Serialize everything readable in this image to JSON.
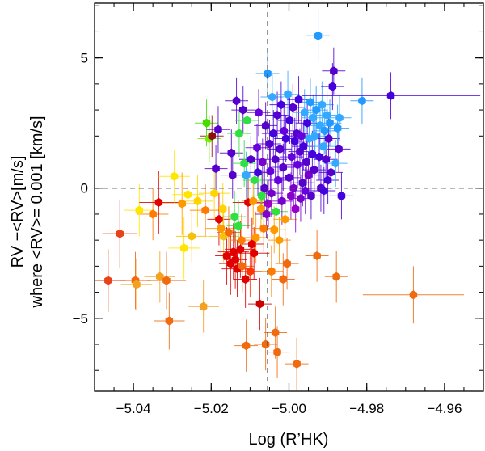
{
  "chart_data": {
    "type": "scatter",
    "xlabel": "Log (R’HK)",
    "ylabel_line1": "RV −<RV>[m/s]",
    "ylabel_line2": "where <RV>=  0.001 [km/s]",
    "xlim": [
      -5.05,
      -4.95
    ],
    "ylim": [
      -7.8,
      7.1
    ],
    "x_ticks": [
      -5.04,
      -5.02,
      -5.0,
      -4.98,
      -4.96
    ],
    "x_tick_labels": [
      "−5.04",
      "−5.02",
      "−5.00",
      "−4.98",
      "−4.96"
    ],
    "y_ticks": [
      -5,
      0,
      5
    ],
    "y_tick_labels": [
      "−5",
      "0",
      "5"
    ],
    "reference_lines": {
      "y": 0,
      "x": -5.0055
    },
    "color_scale": "rainbow from red to violet (phase/time ordering)",
    "points": [
      {
        "x": -5.0465,
        "y": -3.55,
        "xerr": 0.0045,
        "yerr": 1.2,
        "c": "#e8421a"
      },
      {
        "x": -5.0435,
        "y": -1.75,
        "xerr": 0.0045,
        "yerr": 1.3,
        "c": "#e8421a"
      },
      {
        "x": -5.0395,
        "y": -3.55,
        "xerr": 0.004,
        "yerr": 1.1,
        "c": "#f06a10"
      },
      {
        "x": -5.0392,
        "y": -3.7,
        "xerr": 0.004,
        "yerr": 1.0,
        "c": "#f4a020"
      },
      {
        "x": -5.0385,
        "y": -0.85,
        "xerr": 0.004,
        "yerr": 1.0,
        "c": "#ffe600"
      },
      {
        "x": -5.035,
        "y": -1.0,
        "xerr": 0.004,
        "yerr": 1.0,
        "c": "#ff7a00"
      },
      {
        "x": -5.0335,
        "y": -0.55,
        "xerr": 0.005,
        "yerr": 1.2,
        "c": "#e00000"
      },
      {
        "x": -5.0332,
        "y": -3.4,
        "xerr": 0.004,
        "yerr": 1.0,
        "c": "#f4a020"
      },
      {
        "x": -5.0315,
        "y": -3.55,
        "xerr": 0.005,
        "yerr": 1.1,
        "c": "#f06a10"
      },
      {
        "x": -5.0308,
        "y": -5.1,
        "xerr": 0.004,
        "yerr": 1.1,
        "c": "#f06a10"
      },
      {
        "x": -5.0295,
        "y": 0.45,
        "xerr": 0.004,
        "yerr": 1.0,
        "c": "#ffe600"
      },
      {
        "x": -5.0275,
        "y": -0.6,
        "xerr": 0.005,
        "yerr": 1.2,
        "c": "#ff9900"
      },
      {
        "x": -5.027,
        "y": -2.3,
        "xerr": 0.004,
        "yerr": 1.2,
        "c": "#ffe600"
      },
      {
        "x": -5.026,
        "y": -0.25,
        "xerr": 0.004,
        "yerr": 1.0,
        "c": "#ffe600"
      },
      {
        "x": -5.025,
        "y": -1.85,
        "xerr": 0.004,
        "yerr": 1.0,
        "c": "#f4c20d"
      },
      {
        "x": -5.0235,
        "y": -0.5,
        "xerr": 0.004,
        "yerr": 1.0,
        "c": "#ffd400"
      },
      {
        "x": -5.022,
        "y": -4.55,
        "xerr": 0.004,
        "yerr": 1.0,
        "c": "#f4a020"
      },
      {
        "x": -5.0215,
        "y": -0.85,
        "xerr": 0.004,
        "yerr": 1.0,
        "c": "#ff7a00"
      },
      {
        "x": -5.0212,
        "y": 2.5,
        "xerr": 0.003,
        "yerr": 0.9,
        "c": "#44dd00"
      },
      {
        "x": -5.0205,
        "y": 1.9,
        "xerr": 0.003,
        "yerr": 0.9,
        "c": "#77ee00"
      },
      {
        "x": -5.0198,
        "y": 2.0,
        "xerr": 0.003,
        "yerr": 0.8,
        "c": "#8b1010"
      },
      {
        "x": -5.0192,
        "y": -0.2,
        "xerr": 0.004,
        "yerr": 1.0,
        "c": "#ffd400"
      },
      {
        "x": -5.0188,
        "y": 0.75,
        "xerr": 0.003,
        "yerr": 0.9,
        "c": "#5500cc"
      },
      {
        "x": -5.0182,
        "y": 2.25,
        "xerr": 0.003,
        "yerr": 0.9,
        "c": "#5500cc"
      },
      {
        "x": -5.018,
        "y": -1.2,
        "xerr": 0.003,
        "yerr": 1.0,
        "c": "#e00000"
      },
      {
        "x": -5.0175,
        "y": -1.55,
        "xerr": 0.004,
        "yerr": 1.0,
        "c": "#ff9900"
      },
      {
        "x": -5.017,
        "y": -0.8,
        "xerr": 0.003,
        "yerr": 1.0,
        "c": "#ffd400"
      },
      {
        "x": -5.0168,
        "y": -1.85,
        "xerr": 0.004,
        "yerr": 1.0,
        "c": "#f4c20d"
      },
      {
        "x": -5.016,
        "y": -2.6,
        "xerr": 0.003,
        "yerr": 1.1,
        "c": "#e00000"
      },
      {
        "x": -5.0155,
        "y": -1.7,
        "xerr": 0.003,
        "yerr": 1.0,
        "c": "#f06a10"
      },
      {
        "x": -5.015,
        "y": -2.9,
        "xerr": 0.003,
        "yerr": 1.2,
        "c": "#e00000"
      },
      {
        "x": -5.0148,
        "y": 1.35,
        "xerr": 0.003,
        "yerr": 0.9,
        "c": "#5500cc"
      },
      {
        "x": -5.0145,
        "y": 0.5,
        "xerr": 0.003,
        "yerr": 0.9,
        "c": "#5500cc"
      },
      {
        "x": -5.0143,
        "y": -2.45,
        "xerr": 0.004,
        "yerr": 1.1,
        "c": "#e00000"
      },
      {
        "x": -5.014,
        "y": -1.1,
        "xerr": 0.003,
        "yerr": 1.0,
        "c": "#30e040"
      },
      {
        "x": -5.0138,
        "y": -2.75,
        "xerr": 0.003,
        "yerr": 1.1,
        "c": "#e00000"
      },
      {
        "x": -5.0135,
        "y": 3.35,
        "xerr": 0.003,
        "yerr": 0.9,
        "c": "#5500cc"
      },
      {
        "x": -5.0133,
        "y": -3.1,
        "xerr": 0.004,
        "yerr": 1.1,
        "c": "#e00000"
      },
      {
        "x": -5.013,
        "y": -1.45,
        "xerr": 0.003,
        "yerr": 1.0,
        "c": "#30e040"
      },
      {
        "x": -5.0128,
        "y": 2.1,
        "xerr": 0.003,
        "yerr": 0.9,
        "c": "#30e040"
      },
      {
        "x": -5.0125,
        "y": -2.35,
        "xerr": 0.004,
        "yerr": 1.1,
        "c": "#e00000"
      },
      {
        "x": -5.0122,
        "y": -2.0,
        "xerr": 0.003,
        "yerr": 1.0,
        "c": "#ff7a00"
      },
      {
        "x": -5.012,
        "y": -3.0,
        "xerr": 0.003,
        "yerr": 1.0,
        "c": "#f06a10"
      },
      {
        "x": -5.0118,
        "y": 3.0,
        "xerr": 0.003,
        "yerr": 0.9,
        "c": "#5500cc"
      },
      {
        "x": -5.0115,
        "y": 0.95,
        "xerr": 0.003,
        "yerr": 0.9,
        "c": "#30e040"
      },
      {
        "x": -5.0112,
        "y": -3.5,
        "xerr": 0.003,
        "yerr": 1.1,
        "c": "#e00000"
      },
      {
        "x": -5.011,
        "y": 0.5,
        "xerr": 0.003,
        "yerr": 0.9,
        "c": "#33aaff"
      },
      {
        "x": -5.0108,
        "y": 2.6,
        "xerr": 0.003,
        "yerr": 0.9,
        "c": "#30e040"
      },
      {
        "x": -5.0105,
        "y": -0.55,
        "xerr": 0.004,
        "yerr": 1.0,
        "c": "#e00000"
      },
      {
        "x": -5.01,
        "y": -3.2,
        "xerr": 0.003,
        "yerr": 1.0,
        "c": "#ff3300"
      },
      {
        "x": -5.0098,
        "y": 1.1,
        "xerr": 0.003,
        "yerr": 0.9,
        "c": "#5500cc"
      },
      {
        "x": -5.0095,
        "y": -2.15,
        "xerr": 0.003,
        "yerr": 1.0,
        "c": "#e00000"
      },
      {
        "x": -5.0092,
        "y": -0.5,
        "xerr": 0.003,
        "yerr": 0.9,
        "c": "#ff9900"
      },
      {
        "x": -5.009,
        "y": -2.5,
        "xerr": 0.004,
        "yerr": 1.0,
        "c": "#e00000"
      },
      {
        "x": -5.0088,
        "y": 0.3,
        "xerr": 0.003,
        "yerr": 0.9,
        "c": "#30e040"
      },
      {
        "x": -5.0085,
        "y": -1.9,
        "xerr": 0.003,
        "yerr": 1.0,
        "c": "#ff9900"
      },
      {
        "x": -5.0082,
        "y": 1.55,
        "xerr": 0.003,
        "yerr": 0.9,
        "c": "#6600dd"
      },
      {
        "x": -5.008,
        "y": 0.6,
        "xerr": 0.003,
        "yerr": 0.9,
        "c": "#4400dd"
      },
      {
        "x": -5.0078,
        "y": 2.9,
        "xerr": 0.003,
        "yerr": 0.9,
        "c": "#6600dd"
      },
      {
        "x": -5.0075,
        "y": -4.45,
        "xerr": 0.003,
        "yerr": 1.0,
        "c": "#cc0000"
      },
      {
        "x": -5.0072,
        "y": -0.8,
        "xerr": 0.003,
        "yerr": 0.9,
        "c": "#ff9900"
      },
      {
        "x": -5.007,
        "y": -0.3,
        "xerr": 0.003,
        "yerr": 0.9,
        "c": "#30e040"
      },
      {
        "x": -5.0068,
        "y": 1.0,
        "xerr": 0.003,
        "yerr": 0.9,
        "c": "#7700cc"
      },
      {
        "x": -5.0065,
        "y": -1.55,
        "xerr": 0.003,
        "yerr": 0.9,
        "c": "#ff7a00"
      },
      {
        "x": -5.0063,
        "y": 0.0,
        "xerr": 0.003,
        "yerr": 0.9,
        "c": "#5500cc"
      },
      {
        "x": -5.006,
        "y": 2.4,
        "xerr": 0.003,
        "yerr": 0.9,
        "c": "#5500cc"
      },
      {
        "x": -5.0058,
        "y": -1.0,
        "xerr": 0.003,
        "yerr": 0.9,
        "c": "#8800cc"
      },
      {
        "x": -5.0055,
        "y": 4.4,
        "xerr": 0.003,
        "yerr": 0.9,
        "c": "#2299ff"
      },
      {
        "x": -5.0053,
        "y": -0.6,
        "xerr": 0.003,
        "yerr": 0.9,
        "c": "#9900cc"
      },
      {
        "x": -5.005,
        "y": 1.7,
        "xerr": 0.003,
        "yerr": 0.9,
        "c": "#5500cc"
      },
      {
        "x": -5.0048,
        "y": 0.65,
        "xerr": 0.003,
        "yerr": 0.9,
        "c": "#6600dd"
      },
      {
        "x": -5.0045,
        "y": -0.2,
        "xerr": 0.003,
        "yerr": 0.9,
        "c": "#7700cc"
      },
      {
        "x": -5.0043,
        "y": 3.5,
        "xerr": 0.003,
        "yerr": 0.9,
        "c": "#33aaff"
      },
      {
        "x": -5.004,
        "y": 2.1,
        "xerr": 0.003,
        "yerr": 0.9,
        "c": "#4400dd"
      },
      {
        "x": -5.0038,
        "y": -1.6,
        "xerr": 0.003,
        "yerr": 0.9,
        "c": "#ff9900"
      },
      {
        "x": -5.0035,
        "y": 1.1,
        "xerr": 0.003,
        "yerr": 0.9,
        "c": "#5500cc"
      },
      {
        "x": -5.0033,
        "y": -0.9,
        "xerr": 0.003,
        "yerr": 0.9,
        "c": "#30e040"
      },
      {
        "x": -5.003,
        "y": 2.8,
        "xerr": 0.003,
        "yerr": 0.9,
        "c": "#5500cc"
      },
      {
        "x": -5.0028,
        "y": 0.3,
        "xerr": 0.003,
        "yerr": 0.9,
        "c": "#6600dd"
      },
      {
        "x": -5.0025,
        "y": -2.0,
        "xerr": 0.003,
        "yerr": 0.9,
        "c": "#ff9900"
      },
      {
        "x": -5.0023,
        "y": 1.5,
        "xerr": 0.003,
        "yerr": 0.9,
        "c": "#5500cc"
      },
      {
        "x": -5.002,
        "y": 3.2,
        "xerr": 0.003,
        "yerr": 0.9,
        "c": "#4400dd"
      },
      {
        "x": -5.0018,
        "y": -0.5,
        "xerr": 0.003,
        "yerr": 0.9,
        "c": "#7700cc"
      },
      {
        "x": -5.0015,
        "y": 0.8,
        "xerr": 0.003,
        "yerr": 0.9,
        "c": "#5500cc"
      },
      {
        "x": -5.0013,
        "y": 2.2,
        "xerr": 0.003,
        "yerr": 0.9,
        "c": "#6600dd"
      },
      {
        "x": -5.001,
        "y": -1.2,
        "xerr": 0.003,
        "yerr": 0.9,
        "c": "#ff9900"
      },
      {
        "x": -5.0008,
        "y": 1.9,
        "xerr": 0.003,
        "yerr": 0.9,
        "c": "#4400dd"
      },
      {
        "x": -5.0005,
        "y": -2.9,
        "xerr": 0.003,
        "yerr": 1.0,
        "c": "#f06a10"
      },
      {
        "x": -5.0003,
        "y": 3.6,
        "xerr": 0.003,
        "yerr": 0.9,
        "c": "#33aaff"
      },
      {
        "x": -5.0,
        "y": 0.4,
        "xerr": 0.003,
        "yerr": 0.9,
        "c": "#5500cc"
      },
      {
        "x": -4.9998,
        "y": 2.6,
        "xerr": 0.003,
        "yerr": 0.9,
        "c": "#4400dd"
      },
      {
        "x": -4.9995,
        "y": -0.3,
        "xerr": 0.003,
        "yerr": 0.9,
        "c": "#8800cc"
      },
      {
        "x": -4.9993,
        "y": 1.2,
        "xerr": 0.003,
        "yerr": 0.9,
        "c": "#6600dd"
      },
      {
        "x": -4.999,
        "y": 3.1,
        "xerr": 0.003,
        "yerr": 0.9,
        "c": "#5500cc"
      },
      {
        "x": -4.9988,
        "y": 0.0,
        "xerr": 0.003,
        "yerr": 0.9,
        "c": "#7700cc"
      },
      {
        "x": -4.9985,
        "y": 1.8,
        "xerr": 0.003,
        "yerr": 0.9,
        "c": "#4400dd"
      },
      {
        "x": -4.9983,
        "y": -0.8,
        "xerr": 0.003,
        "yerr": 0.9,
        "c": "#9900cc"
      },
      {
        "x": -4.998,
        "y": 2.1,
        "xerr": 0.003,
        "yerr": 0.9,
        "c": "#5500cc"
      },
      {
        "x": -4.9978,
        "y": 0.9,
        "xerr": 0.003,
        "yerr": 0.9,
        "c": "#6600dd"
      },
      {
        "x": -4.9975,
        "y": 3.4,
        "xerr": 0.003,
        "yerr": 0.9,
        "c": "#4400dd"
      },
      {
        "x": -4.9972,
        "y": 1.4,
        "xerr": 0.003,
        "yerr": 0.9,
        "c": "#5500cc"
      },
      {
        "x": -4.997,
        "y": -0.4,
        "xerr": 0.003,
        "yerr": 0.9,
        "c": "#7700cc"
      },
      {
        "x": -4.9968,
        "y": 2.0,
        "xerr": 0.003,
        "yerr": 0.9,
        "c": "#6600dd"
      },
      {
        "x": -4.9965,
        "y": 0.2,
        "xerr": 0.003,
        "yerr": 0.9,
        "c": "#5500cc"
      },
      {
        "x": -4.9963,
        "y": 1.6,
        "xerr": 0.003,
        "yerr": 0.9,
        "c": "#4400dd"
      },
      {
        "x": -4.996,
        "y": 2.9,
        "xerr": 0.003,
        "yerr": 0.9,
        "c": "#33aaff"
      },
      {
        "x": -4.9958,
        "y": -0.1,
        "xerr": 0.003,
        "yerr": 0.9,
        "c": "#6600dd"
      },
      {
        "x": -4.9955,
        "y": 1.0,
        "xerr": 0.003,
        "yerr": 0.9,
        "c": "#5500cc"
      },
      {
        "x": -4.9953,
        "y": 2.5,
        "xerr": 0.003,
        "yerr": 0.9,
        "c": "#4400dd"
      },
      {
        "x": -4.995,
        "y": 0.5,
        "xerr": 0.003,
        "yerr": 0.9,
        "c": "#7700cc"
      },
      {
        "x": -4.9948,
        "y": 1.9,
        "xerr": 0.003,
        "yerr": 0.9,
        "c": "#33aaff"
      },
      {
        "x": -4.9945,
        "y": 3.3,
        "xerr": 0.003,
        "yerr": 0.9,
        "c": "#2299ff"
      },
      {
        "x": -4.9943,
        "y": -0.3,
        "xerr": 0.003,
        "yerr": 0.9,
        "c": "#5500cc"
      },
      {
        "x": -4.994,
        "y": 1.3,
        "xerr": 0.003,
        "yerr": 0.9,
        "c": "#4400dd"
      },
      {
        "x": -4.9938,
        "y": 2.7,
        "xerr": 0.003,
        "yerr": 0.9,
        "c": "#33aaff"
      },
      {
        "x": -4.9935,
        "y": 0.7,
        "xerr": 0.003,
        "yerr": 0.9,
        "c": "#5500cc"
      },
      {
        "x": -4.9933,
        "y": 2.0,
        "xerr": 0.003,
        "yerr": 0.9,
        "c": "#33aaff"
      },
      {
        "x": -4.993,
        "y": 3.0,
        "xerr": 0.003,
        "yerr": 0.9,
        "c": "#2299ff"
      },
      {
        "x": -4.9928,
        "y": -2.6,
        "xerr": 0.003,
        "yerr": 1.0,
        "c": "#f06a10"
      },
      {
        "x": -4.9925,
        "y": 5.85,
        "xerr": 0.003,
        "yerr": 1.0,
        "c": "#2299ff"
      },
      {
        "x": -4.9922,
        "y": 1.2,
        "xerr": 0.003,
        "yerr": 0.9,
        "c": "#4400dd"
      },
      {
        "x": -4.992,
        "y": 2.4,
        "xerr": 0.003,
        "yerr": 0.9,
        "c": "#33aaff"
      },
      {
        "x": -4.9918,
        "y": 0.0,
        "xerr": 0.003,
        "yerr": 0.9,
        "c": "#5500cc"
      },
      {
        "x": -4.9915,
        "y": 3.2,
        "xerr": 0.003,
        "yerr": 0.9,
        "c": "#33aaff"
      },
      {
        "x": -4.9912,
        "y": 1.6,
        "xerr": 0.003,
        "yerr": 0.9,
        "c": "#33aaff"
      },
      {
        "x": -4.991,
        "y": -0.1,
        "xerr": 0.003,
        "yerr": 0.9,
        "c": "#4400dd"
      },
      {
        "x": -4.9908,
        "y": 2.2,
        "xerr": 0.003,
        "yerr": 0.9,
        "c": "#2299ff"
      },
      {
        "x": -4.9905,
        "y": 1.1,
        "xerr": 0.003,
        "yerr": 0.9,
        "c": "#5500cc"
      },
      {
        "x": -4.9902,
        "y": 2.8,
        "xerr": 0.003,
        "yerr": 0.9,
        "c": "#33aaff"
      },
      {
        "x": -4.99,
        "y": 0.3,
        "xerr": 0.003,
        "yerr": 0.9,
        "c": "#4400dd"
      },
      {
        "x": -4.9898,
        "y": 1.9,
        "xerr": 0.003,
        "yerr": 0.9,
        "c": "#5500cc"
      },
      {
        "x": -4.9895,
        "y": 2.5,
        "xerr": 0.003,
        "yerr": 0.9,
        "c": "#2299ff"
      },
      {
        "x": -4.9892,
        "y": 0.6,
        "xerr": 0.003,
        "yerr": 0.9,
        "c": "#5500cc"
      },
      {
        "x": -4.9888,
        "y": 3.9,
        "xerr": 0.003,
        "yerr": 0.9,
        "c": "#4400dd"
      },
      {
        "x": -4.9885,
        "y": 4.5,
        "xerr": 0.003,
        "yerr": 0.9,
        "c": "#5500cc"
      },
      {
        "x": -4.988,
        "y": 0.95,
        "xerr": 0.003,
        "yerr": 0.9,
        "c": "#33aaff"
      },
      {
        "x": -4.9878,
        "y": -3.4,
        "xerr": 0.003,
        "yerr": 1.0,
        "c": "#f06a10"
      },
      {
        "x": -4.9875,
        "y": 2.3,
        "xerr": 0.003,
        "yerr": 0.9,
        "c": "#2299ff"
      },
      {
        "x": -4.9872,
        "y": 1.5,
        "xerr": 0.003,
        "yerr": 0.9,
        "c": "#5500cc"
      },
      {
        "x": -4.987,
        "y": 2.7,
        "xerr": 0.003,
        "yerr": 0.9,
        "c": "#33aaff"
      },
      {
        "x": -4.9865,
        "y": -0.3,
        "xerr": 0.003,
        "yerr": 0.9,
        "c": "#4400dd"
      },
      {
        "x": -4.9812,
        "y": 3.35,
        "xerr": 0.003,
        "yerr": 0.9,
        "c": "#2299ff"
      },
      {
        "x": -4.9738,
        "y": 3.55,
        "xerr": 0.023,
        "yerr": 0.9,
        "c": "#4400dd"
      },
      {
        "x": -4.968,
        "y": -4.1,
        "xerr": 0.013,
        "yerr": 1.1,
        "c": "#f06a10"
      },
      {
        "x": -5.0035,
        "y": -5.55,
        "xerr": 0.003,
        "yerr": 1.0,
        "c": "#f06a10"
      },
      {
        "x": -5.003,
        "y": -6.3,
        "xerr": 0.003,
        "yerr": 1.0,
        "c": "#f06a10"
      },
      {
        "x": -5.006,
        "y": -6.0,
        "xerr": 0.003,
        "yerr": 1.0,
        "c": "#f06a10"
      },
      {
        "x": -4.998,
        "y": -6.75,
        "xerr": 0.003,
        "yerr": 1.0,
        "c": "#f06a10"
      },
      {
        "x": -5.011,
        "y": -6.05,
        "xerr": 0.003,
        "yerr": 1.0,
        "c": "#f06a10"
      },
      {
        "x": -5.0015,
        "y": -3.5,
        "xerr": 0.003,
        "yerr": 1.0,
        "c": "#f06a10"
      },
      {
        "x": -5.0045,
        "y": -3.2,
        "xerr": 0.003,
        "yerr": 1.0,
        "c": "#ff7a00"
      }
    ]
  }
}
